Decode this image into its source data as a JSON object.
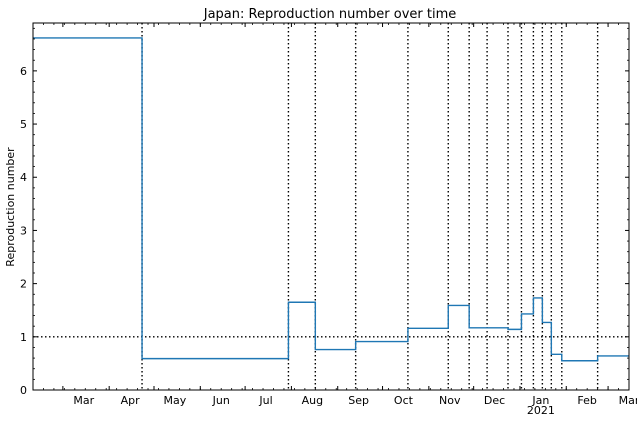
{
  "chart_data": {
    "type": "line",
    "title": "Japan: Reproduction number over time",
    "xlabel": "",
    "ylabel": "Reproduction number",
    "xlim": [
      "2020-02-10",
      "2021-03-15"
    ],
    "ylim": [
      0,
      6.9
    ],
    "grid": false,
    "x_tick_labels": [
      {
        "date": "2020-03-01",
        "label": "Mar"
      },
      {
        "date": "2020-04-01",
        "label": "Apr"
      },
      {
        "date": "2020-05-01",
        "label": "May"
      },
      {
        "date": "2020-06-01",
        "label": "Jun"
      },
      {
        "date": "2020-07-01",
        "label": "Jul"
      },
      {
        "date": "2020-08-01",
        "label": "Aug"
      },
      {
        "date": "2020-09-01",
        "label": "Sep"
      },
      {
        "date": "2020-10-01",
        "label": "Oct"
      },
      {
        "date": "2020-11-01",
        "label": "Nov"
      },
      {
        "date": "2020-12-01",
        "label": "Dec"
      },
      {
        "date": "2021-01-01",
        "label": "Jan"
      },
      {
        "date": "2021-02-01",
        "label": "Feb"
      },
      {
        "date": "2021-03-01",
        "label": "Mar"
      }
    ],
    "x_year_label": {
      "date": "2021-01-01",
      "label": "2021"
    },
    "y_ticks": [
      0,
      1,
      2,
      3,
      4,
      5,
      6
    ],
    "reference_line_y": 1.0,
    "change_points": [
      "2020-04-23",
      "2020-07-30",
      "2020-08-17",
      "2020-09-13",
      "2020-10-18",
      "2020-11-14",
      "2020-11-28",
      "2020-12-10",
      "2020-12-24",
      "2021-01-02",
      "2021-01-10",
      "2021-01-16",
      "2021-01-22",
      "2021-01-29",
      "2021-02-22"
    ],
    "series": [
      {
        "color": "#1f77b4",
        "x": [
          "2020-02-10",
          "2020-04-23",
          "2020-04-23",
          "2020-07-30",
          "2020-07-30",
          "2020-08-17",
          "2020-08-17",
          "2020-09-13",
          "2020-09-13",
          "2020-10-18",
          "2020-10-18",
          "2020-11-14",
          "2020-11-14",
          "2020-11-28",
          "2020-11-28",
          "2020-12-24",
          "2020-12-24",
          "2021-01-02",
          "2021-01-02",
          "2021-01-10",
          "2021-01-10",
          "2021-01-16",
          "2021-01-16",
          "2021-01-22",
          "2021-01-22",
          "2021-01-29",
          "2021-01-29",
          "2021-02-22",
          "2021-02-22",
          "2021-03-15"
        ],
        "y": [
          6.62,
          6.62,
          0.59,
          0.59,
          1.65,
          1.65,
          0.76,
          0.76,
          0.91,
          0.91,
          1.16,
          1.16,
          1.59,
          1.59,
          1.17,
          1.17,
          1.14,
          1.14,
          1.43,
          1.43,
          1.73,
          1.73,
          1.27,
          1.27,
          0.67,
          0.67,
          0.55,
          0.55,
          0.64,
          0.64
        ]
      }
    ]
  }
}
